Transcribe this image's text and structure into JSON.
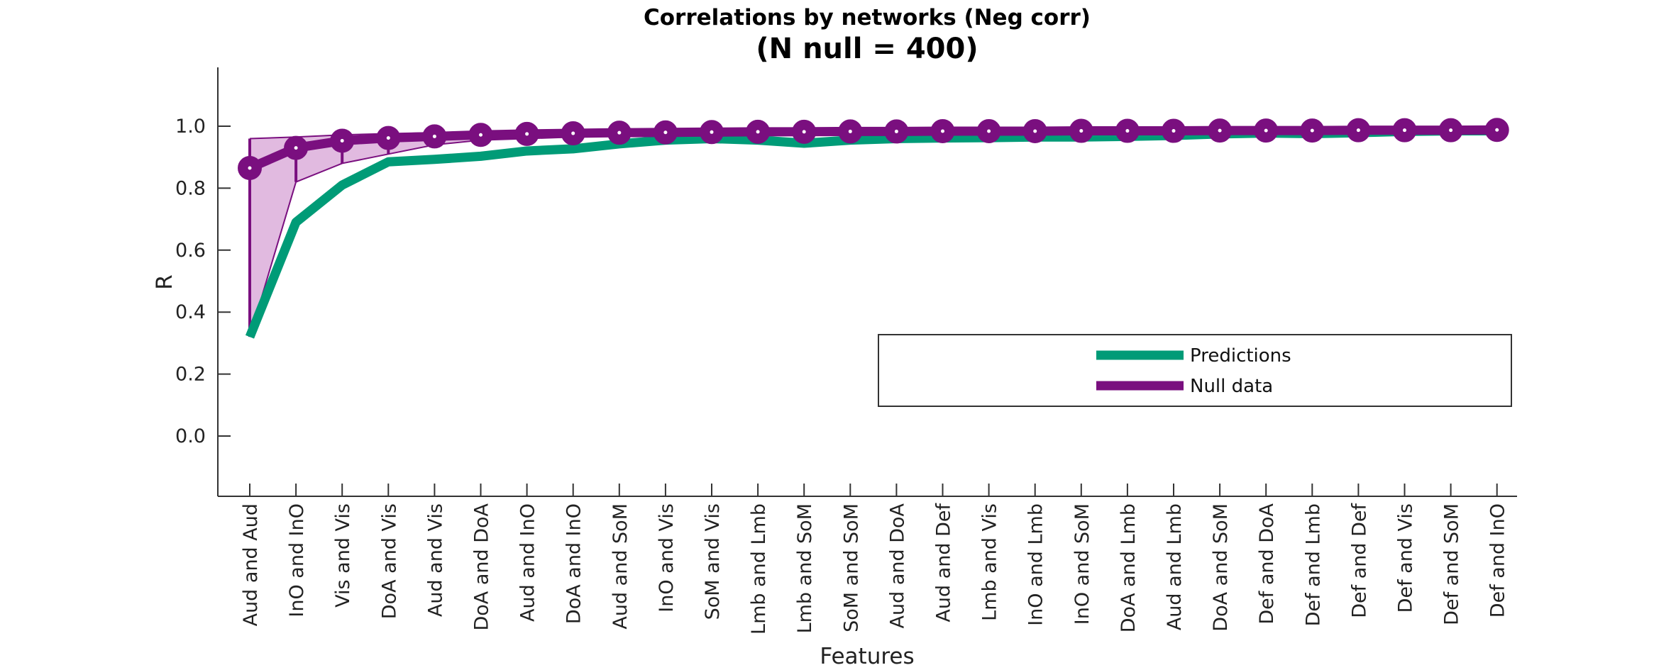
{
  "chart_data": {
    "type": "line",
    "title": "Correlations by networks (Neg corr)",
    "subtitle": "(N null = 400)",
    "xlabel": "Features",
    "ylabel": "R",
    "ylim": [
      -0.19,
      1.19
    ],
    "yticks": [
      "1.0",
      "0.8",
      "0.6",
      "0.4",
      "0.2",
      "0.0"
    ],
    "ytick_values": [
      1.0,
      0.8,
      0.6,
      0.4,
      0.2,
      0.0
    ],
    "grid": false,
    "legend_position": "lower-right",
    "categories": [
      "Aud and Aud",
      "InO and InO",
      "Vis and Vis",
      "DoA and Vis",
      "Aud and Vis",
      "DoA and DoA",
      "Aud and InO",
      "DoA and InO",
      "Aud and SoM",
      "InO and Vis",
      "SoM and Vis",
      "Lmb and Lmb",
      "Lmb and SoM",
      "SoM and SoM",
      "Aud and DoA",
      "Aud and Def",
      "Lmb and Vis",
      "InO and Lmb",
      "InO and SoM",
      "DoA and Lmb",
      "Aud and Lmb",
      "DoA and SoM",
      "Def and DoA",
      "Def and Lmb",
      "Def and Def",
      "Def and Vis",
      "Def and SoM",
      "Def and InO"
    ],
    "series": [
      {
        "name": "Predictions",
        "color": "#009b77",
        "values": [
          0.32,
          0.69,
          0.81,
          0.885,
          0.893,
          0.903,
          0.92,
          0.927,
          0.943,
          0.955,
          0.96,
          0.955,
          0.945,
          0.955,
          0.96,
          0.962,
          0.963,
          0.965,
          0.965,
          0.967,
          0.97,
          0.975,
          0.978,
          0.976,
          0.979,
          0.983,
          0.985,
          0.985
        ]
      },
      {
        "name": "Null data",
        "color": "#7a0f7f",
        "values": [
          0.865,
          0.93,
          0.953,
          0.962,
          0.967,
          0.972,
          0.975,
          0.977,
          0.979,
          0.98,
          0.981,
          0.982,
          0.982,
          0.983,
          0.983,
          0.984,
          0.984,
          0.984,
          0.985,
          0.985,
          0.985,
          0.986,
          0.986,
          0.986,
          0.987,
          0.987,
          0.987,
          0.988
        ],
        "lower": [
          0.32,
          0.82,
          0.88,
          0.91,
          0.94,
          0.955,
          0.96,
          0.965,
          0.97,
          0.972,
          0.974,
          0.976,
          0.977,
          0.978,
          0.979,
          0.98,
          0.98,
          0.981,
          0.981,
          0.982,
          0.982,
          0.983,
          0.983,
          0.984,
          0.984,
          0.985,
          0.985,
          0.985
        ],
        "upper": [
          0.96,
          0.965,
          0.972,
          0.976,
          0.979,
          0.981,
          0.982,
          0.983,
          0.984,
          0.985,
          0.986,
          0.986,
          0.987,
          0.987,
          0.987,
          0.988,
          0.988,
          0.988,
          0.989,
          0.989,
          0.989,
          0.989,
          0.99,
          0.99,
          0.99,
          0.99,
          0.99,
          0.991
        ]
      }
    ]
  }
}
